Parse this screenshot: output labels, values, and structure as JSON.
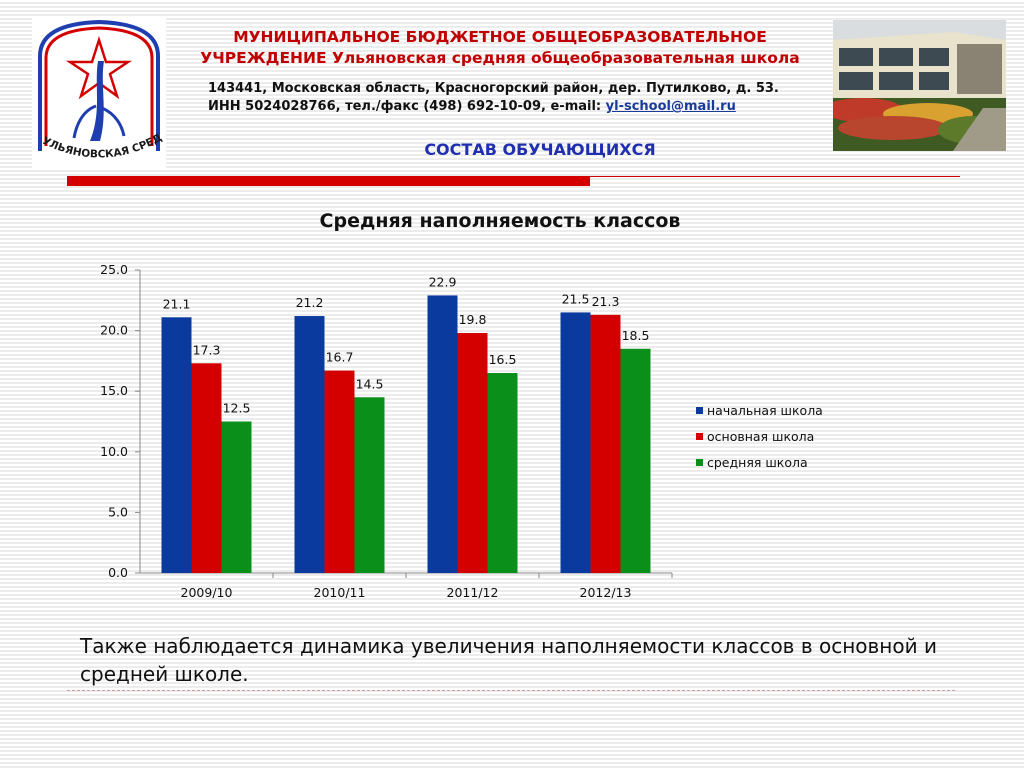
{
  "header": {
    "title_line1": "МУНИЦИПАЛЬНОЕ БЮДЖЕТНОЕ ОБЩЕОБРАЗОВАТЕЛЬНОЕ",
    "title_line2": "УЧРЕЖДЕНИЕ Ульяновская средняя общеобразовательная школа",
    "address_line1": "143441, Московская область, Красногорский район, дер. Путилково, д. 53.",
    "address_line2_prefix": "ИНН 5024028766, тел./факс (498) 692-10-09, e-mail: ",
    "email": "yl-school@mail.ru",
    "logo_text": "УЛЬЯНОВСКАЯ СРЕДНЯЯ ШКОЛА"
  },
  "section_title": "СОСТАВ ОБУЧАЮЩИХСЯ",
  "chart_data": {
    "type": "bar",
    "title": "Средняя наполняемость классов",
    "categories": [
      "2009/10",
      "2010/11",
      "2011/12",
      "2012/13"
    ],
    "ylim": [
      0,
      25
    ],
    "yticks": [
      "0.0",
      "5.0",
      "10.0",
      "15.0",
      "20.0",
      "25.0"
    ],
    "series": [
      {
        "name": "начальная школа",
        "color": "#0a3a9e",
        "values": [
          21.1,
          21.2,
          22.9,
          21.5
        ],
        "labels": [
          "21.1",
          "21.2",
          "22.9",
          "21.5"
        ]
      },
      {
        "name": "основная школа",
        "color": "#d40000",
        "values": [
          17.3,
          16.7,
          19.8,
          21.3
        ],
        "labels": [
          "17.3",
          "16.7",
          "19.8",
          "21.3"
        ]
      },
      {
        "name": "средняя школа",
        "color": "#0a8f1a",
        "values": [
          12.5,
          14.5,
          16.5,
          18.5
        ],
        "labels": [
          "12.5",
          "14.5",
          "16.5",
          "18.5"
        ]
      }
    ],
    "legend_position": "right",
    "grid": false
  },
  "bottom_text": "Также наблюдается динамика увеличения наполняемости классов в основной и средней школе."
}
